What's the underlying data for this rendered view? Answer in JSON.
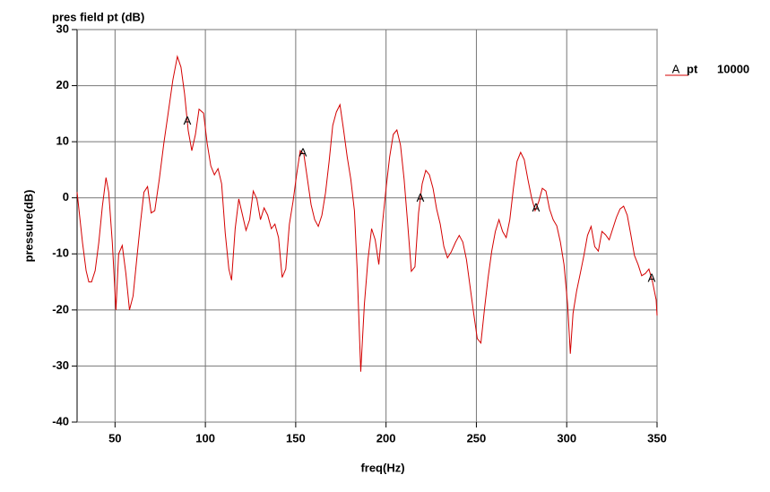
{
  "chart_data": {
    "type": "line",
    "title": "pres field pt (dB)",
    "x_label": "freq(Hz)",
    "y_label": "pressure(dB)",
    "xlim": [
      29,
      350
    ],
    "ylim": [
      -40,
      30
    ],
    "xticks": [
      50,
      100,
      150,
      200,
      250,
      300,
      350
    ],
    "yticks": [
      -40,
      -30,
      -20,
      -10,
      0,
      10,
      20,
      30
    ],
    "grid": true,
    "legend_position": "right",
    "x": [
      29,
      30,
      32,
      34,
      35.5,
      37,
      39,
      41,
      43,
      45,
      46.5,
      48.5,
      50.5,
      52,
      54,
      56,
      58,
      60,
      62,
      64,
      66,
      68,
      70,
      72,
      74.5,
      77,
      79.5,
      82,
      84.5,
      86.5,
      88.5,
      90.5,
      92.5,
      94.5,
      96.5,
      99,
      101,
      103,
      105,
      107,
      109,
      111,
      113,
      114.5,
      116.5,
      118.5,
      120.5,
      122.5,
      124.5,
      126.5,
      128.5,
      130.5,
      132.5,
      134.5,
      136.5,
      138.5,
      140.5,
      142.5,
      144.5,
      146.5,
      148.5,
      150.5,
      152.5,
      154.5,
      156.5,
      158.5,
      160.5,
      162.5,
      164.5,
      166.5,
      168.5,
      170.5,
      172.5,
      174.5,
      176.5,
      178.5,
      180.5,
      182.5,
      184,
      186,
      188,
      190,
      192,
      194,
      196,
      198,
      200,
      202,
      204,
      206,
      208,
      210,
      212,
      214,
      216,
      218,
      220,
      222,
      224,
      226,
      228,
      230,
      232,
      234,
      236,
      238.5,
      240.5,
      242.5,
      244.5,
      246.5,
      248.5,
      250.5,
      252.5,
      254.5,
      256.5,
      258.5,
      260.5,
      262.5,
      264.5,
      266.5,
      268.5,
      270.5,
      272.5,
      274.5,
      276.5,
      278.5,
      280.5,
      282.5,
      284.5,
      286.5,
      288.5,
      290.5,
      292.5,
      294.5,
      296.5,
      298.5,
      300.5,
      302,
      303.5,
      305.5,
      307.5,
      309.5,
      311.5,
      313.5,
      315.5,
      317.5,
      319.5,
      321.5,
      323.5,
      325.5,
      327.5,
      329.5,
      331.5,
      333.5,
      335.5,
      337.5,
      339.5,
      341.5,
      343.5,
      345.5,
      347.5,
      349.5,
      350
    ],
    "series": [
      {
        "name": "pt",
        "marker": "A",
        "legend_value": "10000",
        "color": "#d40000",
        "marker_x": [
          90,
          154,
          219,
          283,
          347
        ],
        "values": [
          1,
          -2,
          -8,
          -13,
          -15,
          -15,
          -13,
          -8,
          -1.5,
          3.6,
          1,
          -8,
          -20,
          -10,
          -8.5,
          -13.5,
          -20,
          -17.5,
          -11,
          -4.7,
          1,
          2,
          -2.7,
          -2.3,
          3.3,
          9.7,
          15.3,
          21,
          25.2,
          23.3,
          18.5,
          12,
          8.4,
          11.3,
          15.8,
          15.1,
          9.7,
          5.7,
          4.1,
          5.2,
          2.5,
          -6.3,
          -12.7,
          -14.7,
          -5.5,
          -0.2,
          -3,
          -5.8,
          -3.9,
          1.2,
          -0.2,
          -3.9,
          -1.8,
          -3.1,
          -5.5,
          -4.7,
          -7.1,
          -14.2,
          -12.7,
          -4.7,
          -0.7,
          4.1,
          8.4,
          7.8,
          3.3,
          -1.2,
          -3.9,
          -5.1,
          -3.1,
          0.9,
          6.5,
          12.9,
          15.3,
          16.6,
          12.1,
          7.3,
          3.3,
          -2.3,
          -12.7,
          -31,
          -19,
          -11,
          -5.5,
          -7.5,
          -11.9,
          -4.7,
          1.7,
          7.3,
          11.3,
          12.1,
          9.4,
          3.3,
          -4.7,
          -13.1,
          -12.3,
          -2.7,
          2.5,
          4.9,
          4.1,
          1.7,
          -2,
          -4.7,
          -8.7,
          -10.7,
          -9.7,
          -7.9,
          -6.7,
          -7.9,
          -11,
          -15.8,
          -20.6,
          -25.1,
          -25.9,
          -19.8,
          -14.2,
          -9.5,
          -6,
          -3.9,
          -6,
          -7.1,
          -3.9,
          1.7,
          6.5,
          8.1,
          6.8,
          3.3,
          0.1,
          -2.3,
          -0.7,
          1.7,
          1.2,
          -2,
          -3.9,
          -5,
          -7.9,
          -11.9,
          -19,
          -27.8,
          -20.6,
          -16.6,
          -13.5,
          -10.3,
          -6.7,
          -5.1,
          -8.7,
          -9.5,
          -6,
          -6.6,
          -7.5,
          -5.5,
          -3.5,
          -2,
          -1.5,
          -3.1,
          -6.6,
          -10.3,
          -11.9,
          -13.9,
          -13.5,
          -12.7,
          -15,
          -18.2,
          -21
        ]
      }
    ]
  }
}
